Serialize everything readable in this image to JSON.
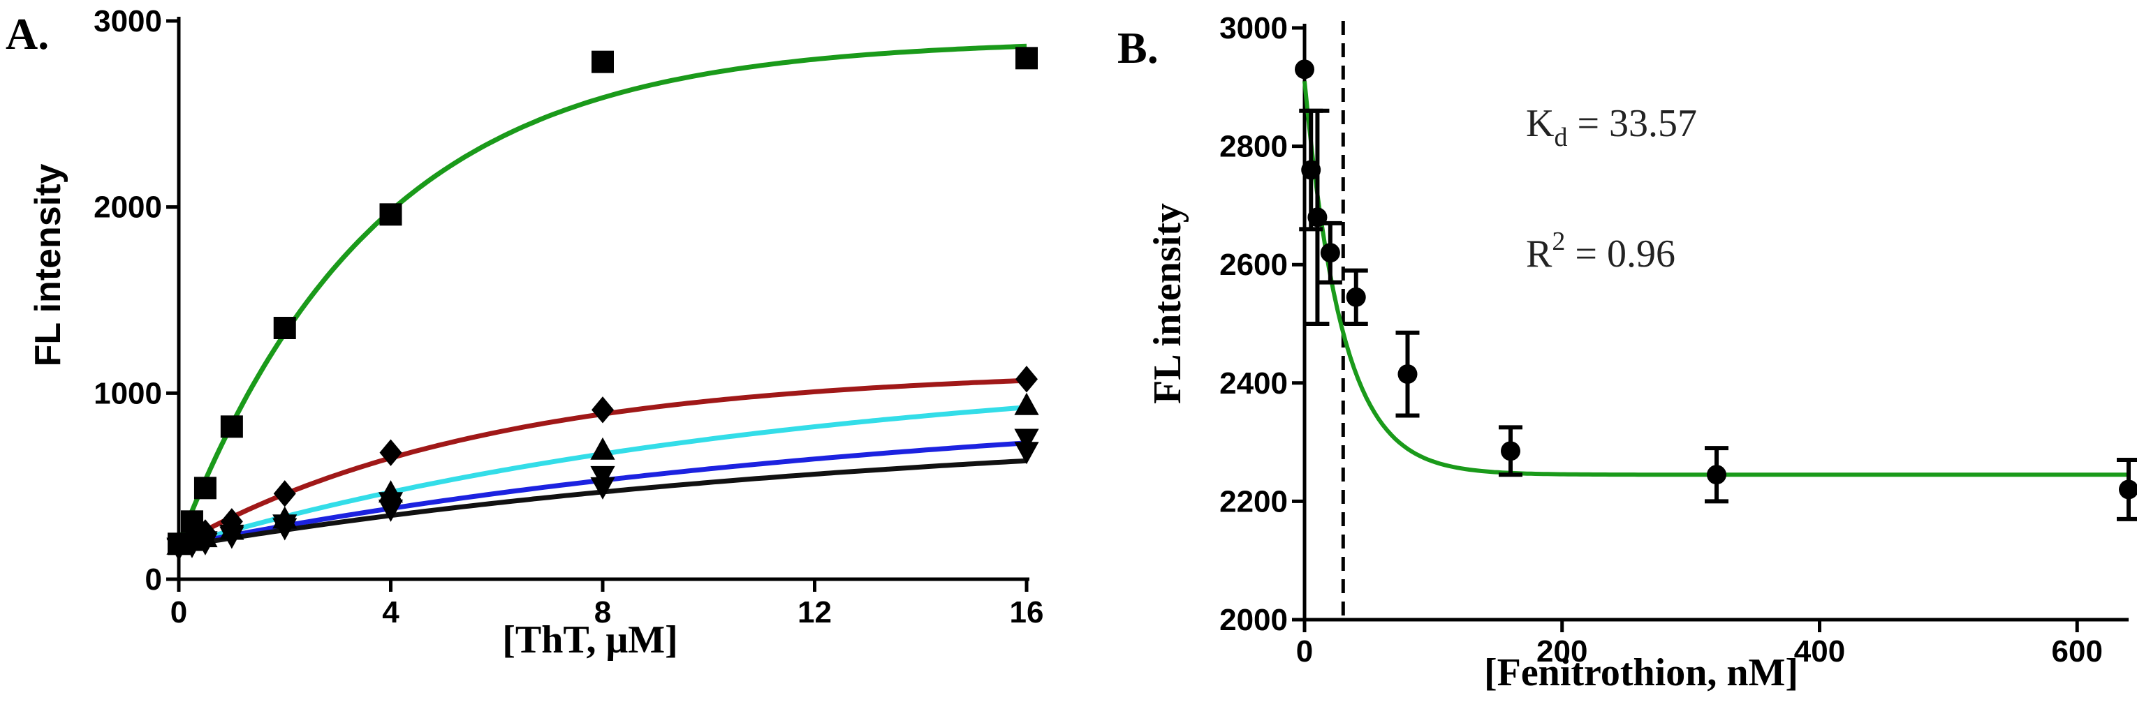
{
  "chart_data": [
    {
      "panel": "A.",
      "type": "scatter",
      "title": "",
      "xlabel": "[ThT, μM]",
      "ylabel": "FL intensity",
      "xlim": [
        0,
        16
      ],
      "ylim": [
        0,
        3000
      ],
      "xticks": [
        "0",
        "4",
        "8",
        "12",
        "16"
      ],
      "yticks": [
        "0",
        "1000",
        "2000",
        "3000"
      ],
      "grid": false,
      "series": [
        {
          "marker": "square",
          "color": "#1a9a1a",
          "x": [
            0,
            0.25,
            0.5,
            1,
            2,
            4,
            8,
            16
          ],
          "y": [
            190,
            310,
            490,
            820,
            1350,
            1960,
            2780,
            2800
          ],
          "fit": {
            "model": "exp_rise",
            "y0": 190,
            "ymax": 2900,
            "k": 0.27
          }
        },
        {
          "marker": "diamond",
          "color": "#a01818",
          "x": [
            0,
            0.25,
            0.5,
            1,
            2,
            4,
            8,
            16
          ],
          "y": [
            190,
            220,
            250,
            310,
            460,
            680,
            910,
            1075
          ],
          "fit": {
            "model": "exp_rise",
            "y0": 185,
            "ymax": 1130,
            "k": 0.17
          }
        },
        {
          "marker": "triangle-up",
          "color": "#33dde8",
          "x": [
            0,
            0.25,
            0.5,
            1,
            2,
            4,
            8,
            16
          ],
          "y": [
            180,
            200,
            220,
            260,
            320,
            460,
            690,
            930
          ],
          "fit": {
            "model": "exp_rise",
            "y0": 180,
            "ymax": 1180,
            "k": 0.085
          }
        },
        {
          "marker": "triangle-down",
          "color": "#1c22e0",
          "x": [
            0,
            0.25,
            0.5,
            1,
            2,
            4,
            8,
            16
          ],
          "y": [
            175,
            190,
            210,
            245,
            300,
            420,
            560,
            760
          ],
          "fit": {
            "model": "exp_rise",
            "y0": 180,
            "ymax": 1000,
            "k": 0.07
          }
        },
        {
          "marker": "triangle-down",
          "color": "#111111",
          "x": [
            0,
            0.25,
            0.5,
            1,
            2,
            4,
            8,
            16
          ],
          "y": [
            170,
            185,
            200,
            235,
            280,
            380,
            500,
            690
          ],
          "fit": {
            "model": "exp_rise",
            "y0": 175,
            "ymax": 860,
            "k": 0.07
          }
        }
      ]
    },
    {
      "panel": "B.",
      "type": "scatter",
      "title": "",
      "xlabel": "[Fenitrothion, nM]",
      "ylabel": "FL intensity",
      "xlim": [
        0,
        640
      ],
      "ylim": [
        2000,
        3000
      ],
      "xticks": [
        "0",
        "200",
        "400",
        "600"
      ],
      "yticks": [
        "2000",
        "2200",
        "2400",
        "2600",
        "2800",
        "3000"
      ],
      "grid": false,
      "annotations": {
        "kd_main": "K",
        "kd_sub": "d",
        "kd_value": " = 33.57",
        "r2_main": "R",
        "r2_sup": "2",
        "r2_value": " = 0.96"
      },
      "kd_marker_x": 30,
      "series": [
        {
          "marker": "circle",
          "color": "#000000",
          "x": [
            0,
            5,
            10,
            20,
            40,
            80,
            160,
            320,
            640
          ],
          "y": [
            2930,
            2760,
            2680,
            2620,
            2545,
            2415,
            2285,
            2245,
            2220
          ],
          "err": [
            0,
            100,
            180,
            50,
            45,
            70,
            40,
            45,
            50
          ],
          "fit": {
            "model": "exp_decay",
            "ymin": 2245,
            "span": 665,
            "k": 0.034,
            "color": "#1a9a1a"
          }
        }
      ]
    }
  ]
}
